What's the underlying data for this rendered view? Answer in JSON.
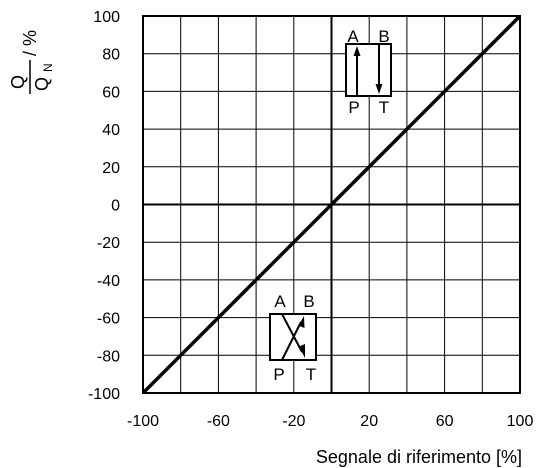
{
  "chart_data": {
    "type": "line",
    "title": "",
    "xlabel": "Segnale di riferimento [%]",
    "ylabel": {
      "numerator": "Q",
      "denominator": "Q",
      "denominator_subscript": "N",
      "unit": "/ %"
    },
    "xlim": [
      -100,
      100
    ],
    "ylim": [
      -100,
      100
    ],
    "x_ticks": [
      -100,
      -60,
      -20,
      20,
      60,
      100
    ],
    "y_ticks": [
      100,
      80,
      60,
      40,
      20,
      0,
      -20,
      -40,
      -60,
      -80,
      -100
    ],
    "grid": true,
    "series": [
      {
        "x": [
          -100,
          100
        ],
        "y": [
          -100,
          100
        ],
        "color": "#000000"
      }
    ],
    "annotations": [
      {
        "kind": "valve-parallel",
        "top_labels": [
          "A",
          "B"
        ],
        "bottom_labels": [
          "P",
          "T"
        ]
      },
      {
        "kind": "valve-crossed",
        "top_labels": [
          "A",
          "B"
        ],
        "bottom_labels": [
          "P",
          "T"
        ]
      }
    ]
  }
}
